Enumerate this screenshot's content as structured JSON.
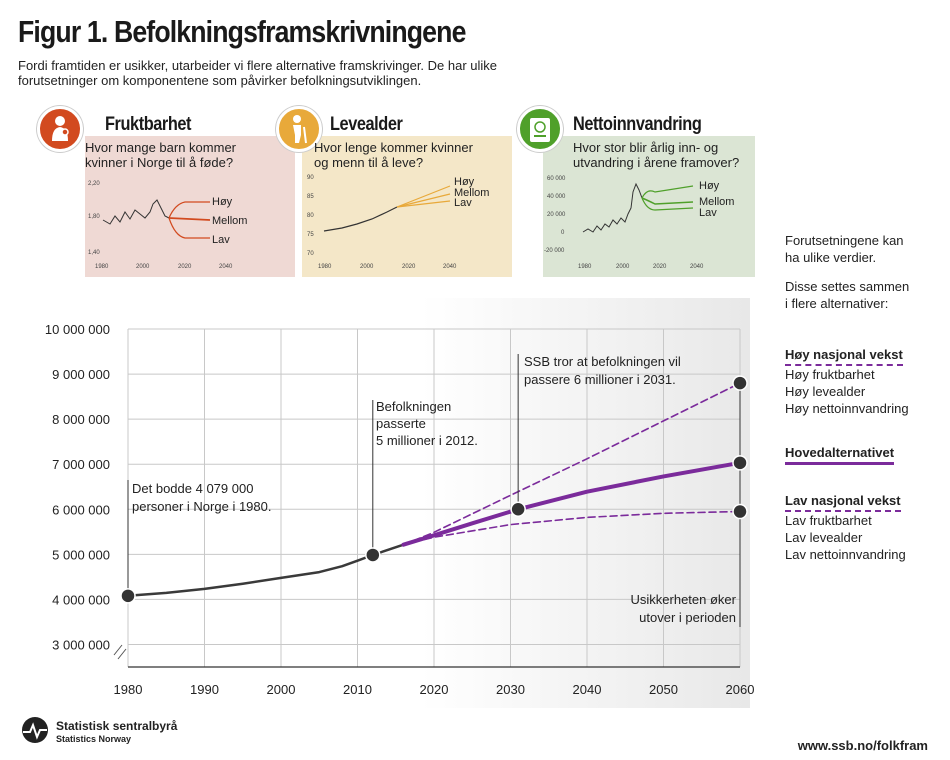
{
  "header": {
    "title": "Figur 1. Befolkningsframskrivningene",
    "subtitle": "Fordi framtiden er usikker, utarbeider vi flere alternative framskrivinger. De har ulike forutsetninger om komponentene som påvirker befolkningsutviklingen."
  },
  "panels": [
    {
      "id": "fruktbarhet",
      "title": "Fruktbarhet",
      "question": "Hvor mange barn kommer kvinner i Norge til å føde?",
      "bg": "#efd9d4",
      "icon_color": "#d24a1f",
      "line_color": "#d24a1f",
      "icon": "mother-child-icon",
      "y_ticks": [
        "2,20",
        "1,80",
        "1,40"
      ],
      "x_ticks": [
        "1980",
        "2000",
        "2020",
        "2040"
      ],
      "labels": [
        "Høy",
        "Mellom",
        "Lav"
      ]
    },
    {
      "id": "levealder",
      "title": "Levealder",
      "question": "Hvor lenge kommer kvinner og menn til å leve?",
      "bg": "#f4e7c8",
      "icon_color": "#e8a93a",
      "line_color": "#e8a93a",
      "icon": "elderly-person-icon",
      "y_ticks": [
        "90",
        "85",
        "80",
        "75",
        "70"
      ],
      "x_ticks": [
        "1980",
        "2000",
        "2020",
        "2040"
      ],
      "labels": [
        "Høy",
        "Mellom",
        "Lav"
      ]
    },
    {
      "id": "nettoinnvandring",
      "title": "Nettoinnvandring",
      "question": "Hvor stor blir årlig inn- og utvandring i årene framover?",
      "bg": "#dbe5d4",
      "icon_color": "#4fa02a",
      "line_color": "#4fa02a",
      "icon": "passport-icon",
      "y_ticks": [
        "60 000",
        "40 000",
        "20 000",
        "0",
        "-20 000"
      ],
      "x_ticks": [
        "1980",
        "2000",
        "2020",
        "2040"
      ],
      "labels": [
        "Høy",
        "Mellom",
        "Lav"
      ]
    }
  ],
  "chart_data": {
    "type": "line",
    "title": "",
    "xlabel": "",
    "ylabel": "",
    "xlim": [
      1980,
      2060
    ],
    "ylim": [
      2500000,
      10000000
    ],
    "x_ticks": [
      "1980",
      "1990",
      "2000",
      "2010",
      "2020",
      "2030",
      "2040",
      "2050",
      "2060"
    ],
    "y_ticks": [
      "10 000 000",
      "9 000 000",
      "8 000 000",
      "7 000 000",
      "6 000 000",
      "5 000 000",
      "4 000 000",
      "3 000 000"
    ],
    "y_tick_values": [
      10000000,
      9000000,
      8000000,
      7000000,
      6000000,
      5000000,
      4000000,
      3000000
    ],
    "x_tick_values": [
      1980,
      1990,
      2000,
      2010,
      2020,
      2030,
      2040,
      2050,
      2060
    ],
    "series": [
      {
        "style": "historical",
        "color": "#3a3a3a",
        "x": [
          1980,
          1985,
          1990,
          1995,
          2000,
          2005,
          2008,
          2010,
          2012,
          2016
        ],
        "values": [
          4079000,
          4145000,
          4233000,
          4348000,
          4478000,
          4606000,
          4737000,
          4858000,
          4986000,
          5214000
        ]
      },
      {
        "style": "main",
        "color": "#7b2b9b",
        "x": [
          2016,
          2020,
          2025,
          2031,
          2040,
          2050,
          2060
        ],
        "values": [
          5214000,
          5423000,
          5688000,
          6000000,
          6390000,
          6730000,
          7030000
        ]
      },
      {
        "style": "high",
        "color": "#7b2b9b",
        "x": [
          2016,
          2020,
          2030,
          2040,
          2050,
          2060
        ],
        "values": [
          5214000,
          5490000,
          6310000,
          7120000,
          7960000,
          8800000
        ]
      },
      {
        "style": "low",
        "color": "#7b2b9b",
        "x": [
          2016,
          2020,
          2030,
          2040,
          2050,
          2060
        ],
        "values": [
          5214000,
          5380000,
          5660000,
          5820000,
          5910000,
          5950000
        ]
      }
    ],
    "markers": [
      {
        "x": 1980,
        "y": 4079000,
        "label": "Det bodde 4 079 000 personer i Norge i 1980."
      },
      {
        "x": 2012,
        "y": 4986000,
        "label": "Befolkningen passerte 5 millioner i 2012."
      },
      {
        "x": 2031,
        "y": 6000000,
        "label": "SSB tror at befolkningen vil passere 6 millioner i 2031."
      },
      {
        "x": 2060,
        "y": 8800000,
        "label": ""
      },
      {
        "x": 2060,
        "y": 7030000,
        "label": ""
      },
      {
        "x": 2060,
        "y": 5950000,
        "label": "Usikkerheten øker utover i perioden"
      }
    ]
  },
  "annotations": {
    "a1980_line1": "Det bodde 4 079 000",
    "a1980_line2": "personer i Norge i 1980.",
    "a2012_line1": "Befolkningen",
    "a2012_line2": "passerte",
    "a2012_line3": "5 millioner i 2012.",
    "a2031_line1": "SSB tror at befolkningen vil",
    "a2031_line2": "passere 6 millioner i 2031.",
    "a2060_line1": "Usikkerheten øker",
    "a2060_line2": "utover i perioden"
  },
  "sidebar": {
    "intro1": "Forutsetningene kan",
    "intro2": "ha ulike verdier.",
    "intro3": "Disse settes sammen",
    "intro4": "i flere alternativer:",
    "high_head": "Høy nasjonal vekst",
    "high_items": [
      "Høy fruktbarhet",
      "Høy levealder",
      "Høy nettoinnvandring"
    ],
    "main_head": "Hovedalternativet",
    "low_head": "Lav nasjonal vekst",
    "low_items": [
      "Lav fruktbarhet",
      "Lav levealder",
      "Lav nettoinnvandring"
    ]
  },
  "footer": {
    "org": "Statistisk sentralbyrå",
    "org_en": "Statistics Norway",
    "url": "www.ssb.no/folkfram"
  },
  "colors": {
    "purple": "#7b2b9b",
    "dark_line": "#3a3a3a"
  }
}
